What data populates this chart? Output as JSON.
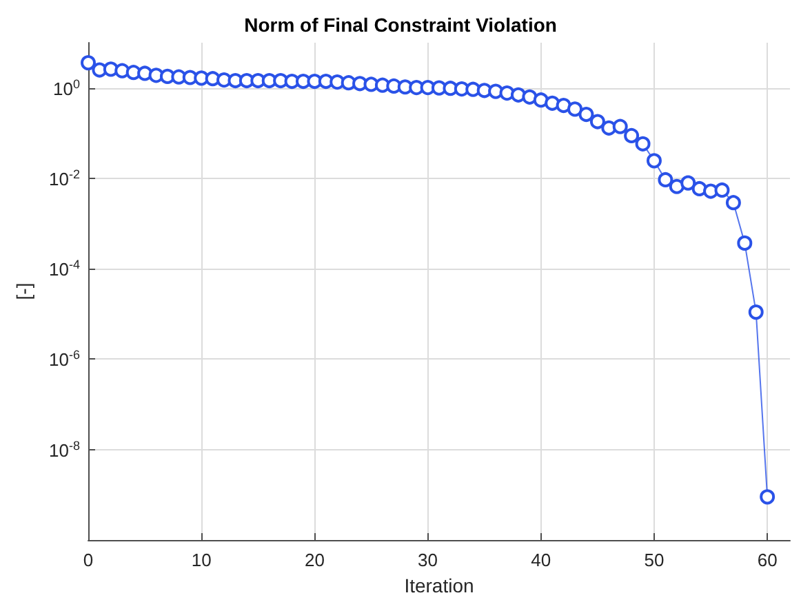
{
  "chart_data": {
    "type": "line",
    "title": "Norm of Final Constraint Violation",
    "xlabel": "Iteration",
    "ylabel": "[-]",
    "x": [
      0,
      1,
      2,
      3,
      4,
      5,
      6,
      7,
      8,
      9,
      10,
      11,
      12,
      13,
      14,
      15,
      16,
      17,
      18,
      19,
      20,
      21,
      22,
      23,
      24,
      25,
      26,
      27,
      28,
      29,
      30,
      31,
      32,
      33,
      34,
      35,
      36,
      37,
      38,
      39,
      40,
      41,
      42,
      43,
      44,
      45,
      46,
      47,
      48,
      49,
      50,
      51,
      52,
      53,
      54,
      55,
      56,
      57,
      58,
      59,
      60
    ],
    "series": [
      {
        "color": "#2a52e8",
        "values": [
          3.6,
          2.5,
          2.6,
          2.4,
          2.2,
          2.1,
          1.9,
          1.8,
          1.75,
          1.7,
          1.65,
          1.6,
          1.5,
          1.45,
          1.45,
          1.45,
          1.45,
          1.45,
          1.4,
          1.4,
          1.4,
          1.4,
          1.35,
          1.3,
          1.25,
          1.2,
          1.15,
          1.1,
          1.05,
          1.02,
          1.02,
          1.0,
          0.98,
          0.95,
          0.93,
          0.88,
          0.84,
          0.77,
          0.7,
          0.63,
          0.54,
          0.46,
          0.41,
          0.34,
          0.26,
          0.18,
          0.13,
          0.14,
          0.088,
          0.058,
          0.0245,
          0.0093,
          0.0066,
          0.0079,
          0.0059,
          0.0052,
          0.0055,
          0.0029,
          0.00037,
          1.1e-05,
          9e-10
        ]
      }
    ],
    "xlim": [
      0,
      62
    ],
    "xticks": [
      0,
      10,
      20,
      30,
      40,
      50,
      60
    ],
    "ylim": [
      1e-10,
      10
    ],
    "yticks": [
      {
        "value": 1,
        "label": "10$^{0}$"
      },
      {
        "value": 0.01,
        "label": "10$^{-2}$"
      },
      {
        "value": 0.0001,
        "label": "10$^{-4}$"
      },
      {
        "value": 1e-06,
        "label": "10$^{-6}$"
      },
      {
        "value": 1e-08,
        "label": "10$^{-8}$"
      }
    ],
    "log": "y",
    "grid": true,
    "marker": "circle",
    "line_style": "solid"
  }
}
